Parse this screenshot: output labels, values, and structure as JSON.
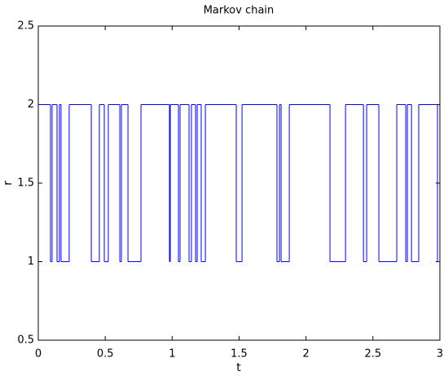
{
  "chart_data": {
    "type": "step",
    "title": "Markov chain",
    "x_label": "t",
    "y_label": "r",
    "x": [
      0,
      0.091,
      0.103,
      0.14,
      0.158,
      0.17,
      0.231,
      0.396,
      0.456,
      0.493,
      0.523,
      0.609,
      0.621,
      0.67,
      0.767,
      0.98,
      0.986,
      1.047,
      1.059,
      1.126,
      1.144,
      1.175,
      1.187,
      1.217,
      1.248,
      1.479,
      1.522,
      1.783,
      1.802,
      1.814,
      1.875,
      2.179,
      2.295,
      2.429,
      2.453,
      2.544,
      2.678,
      2.745,
      2.757,
      2.788,
      2.842,
      2.982
    ],
    "values": [
      2,
      1,
      2,
      1,
      2,
      1,
      2,
      1,
      2,
      1,
      2,
      1,
      2,
      1,
      2,
      1,
      2,
      1,
      2,
      1,
      2,
      1,
      2,
      1,
      2,
      1,
      2,
      1,
      2,
      1,
      2,
      1,
      2,
      1,
      2,
      1,
      2,
      1,
      2,
      1,
      2,
      1
    ],
    "color": "#0000ff",
    "xlim": [
      0,
      3
    ],
    "xticks": [
      0,
      0.5,
      1,
      1.5,
      2,
      2.5,
      3
    ],
    "ylim": [
      0.5,
      2.5
    ],
    "yticks": [
      0.5,
      1,
      1.5,
      2,
      2.5
    ],
    "grid": false
  }
}
